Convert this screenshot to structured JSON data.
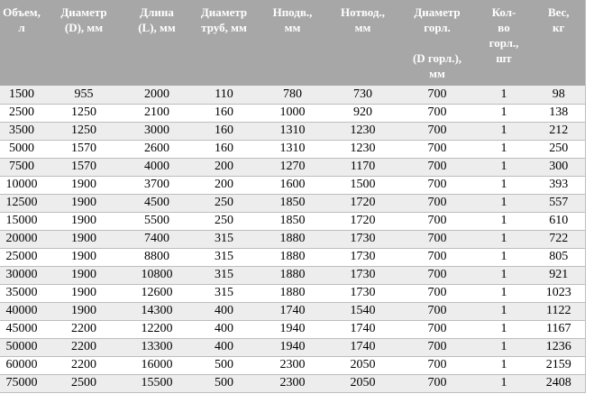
{
  "colors": {
    "header_bg": "#a7a7a7",
    "header_text": "#ffffff",
    "stripe_bg": "#ededed",
    "row_bg": "#ffffff",
    "border": "#bdbdbd",
    "text": "#000000"
  },
  "table": {
    "columns": [
      {
        "label": "Объем,\nл"
      },
      {
        "label": "Диаметр\n(D), мм"
      },
      {
        "label": "Длина\n(L), мм"
      },
      {
        "label": "Диаметр\nтруб, мм"
      },
      {
        "label": "Нподв.,\nмм"
      },
      {
        "label": "Нотвод.,\nмм"
      },
      {
        "label": "Диаметр\nгорл.\n\n(D горл.),\nмм"
      },
      {
        "label": "Кол-\nво\nгорл.,\nшт"
      },
      {
        "label": "Вес,\nкг"
      }
    ],
    "rows": [
      [
        "1500",
        "955",
        "2000",
        "110",
        "780",
        "730",
        "700",
        "1",
        "98"
      ],
      [
        "2500",
        "1250",
        "2100",
        "160",
        "1000",
        "920",
        "700",
        "1",
        "138"
      ],
      [
        "3500",
        "1250",
        "3000",
        "160",
        "1310",
        "1230",
        "700",
        "1",
        "212"
      ],
      [
        "5000",
        "1570",
        "2600",
        "160",
        "1310",
        "1230",
        "700",
        "1",
        "250"
      ],
      [
        "7500",
        "1570",
        "4000",
        "200",
        "1270",
        "1170",
        "700",
        "1",
        "300"
      ],
      [
        "10000",
        "1900",
        "3700",
        "200",
        "1600",
        "1500",
        "700",
        "1",
        "393"
      ],
      [
        "12500",
        "1900",
        "4500",
        "250",
        "1850",
        "1720",
        "700",
        "1",
        "557"
      ],
      [
        "15000",
        "1900",
        "5500",
        "250",
        "1850",
        "1720",
        "700",
        "1",
        "610"
      ],
      [
        "20000",
        "1900",
        "7400",
        "315",
        "1880",
        "1730",
        "700",
        "1",
        "722"
      ],
      [
        "25000",
        "1900",
        "8800",
        "315",
        "1880",
        "1730",
        "700",
        "1",
        "805"
      ],
      [
        "30000",
        "1900",
        "10800",
        "315",
        "1880",
        "1730",
        "700",
        "1",
        "921"
      ],
      [
        "35000",
        "1900",
        "12600",
        "315",
        "1880",
        "1730",
        "700",
        "1",
        "1023"
      ],
      [
        "40000",
        "1900",
        "14300",
        "400",
        "1740",
        "1540",
        "700",
        "1",
        "1122"
      ],
      [
        "45000",
        "2200",
        "12200",
        "400",
        "1940",
        "1740",
        "700",
        "1",
        "1167"
      ],
      [
        "50000",
        "2200",
        "13300",
        "400",
        "1940",
        "1740",
        "700",
        "1",
        "1236"
      ],
      [
        "60000",
        "2200",
        "16000",
        "500",
        "2300",
        "2050",
        "700",
        "1",
        "2159"
      ],
      [
        "75000",
        "2500",
        "15500",
        "500",
        "2300",
        "2050",
        "700",
        "1",
        "2408"
      ]
    ]
  }
}
